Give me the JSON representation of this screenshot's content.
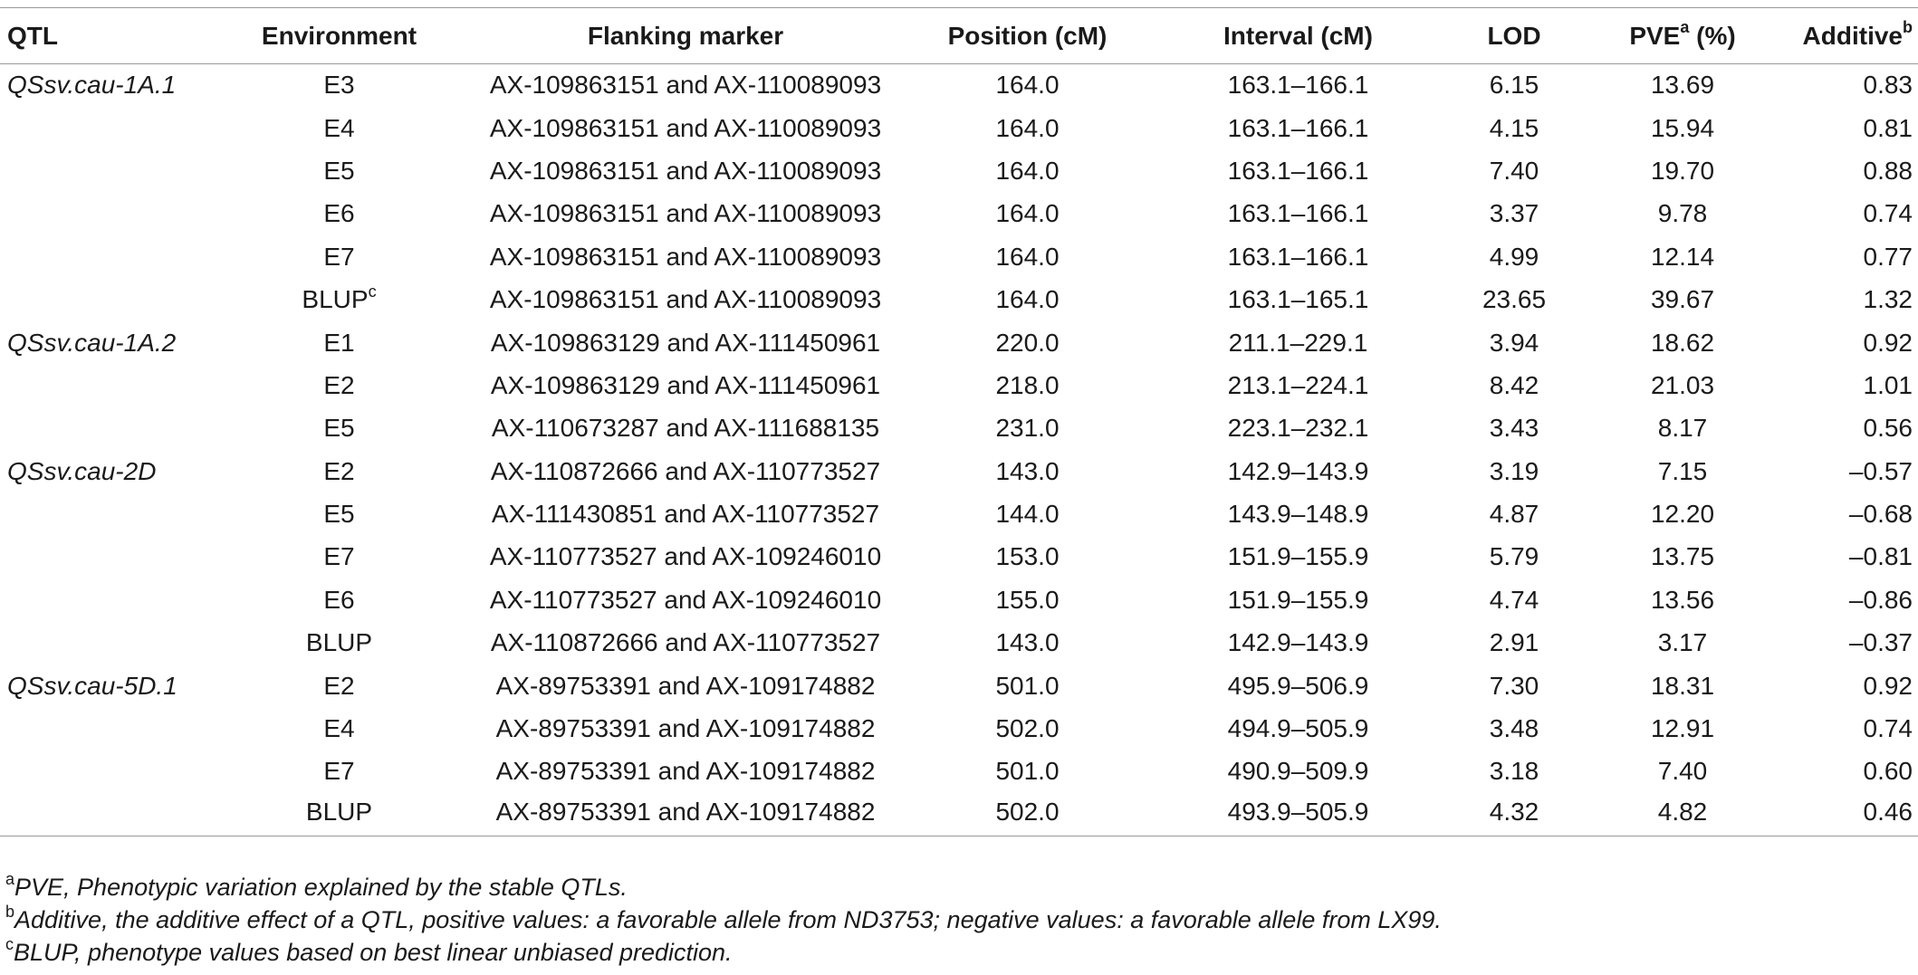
{
  "headers": {
    "qtl": "QTL",
    "environment": "Environment",
    "marker": "Flanking marker",
    "position": "Position (cM)",
    "interval": "Interval (cM)",
    "lod": "LOD",
    "pve": "PVE",
    "pve_sup": "a",
    "pve_unit": " (%)",
    "additive": "Additive",
    "additive_sup": "b"
  },
  "rows": [
    {
      "qtl": "QSsv.cau-1A.1",
      "env": "E3",
      "env_sup": "",
      "marker": "AX-109863151 and AX-110089093",
      "pos": "164.0",
      "interval": "163.1–166.1",
      "lod": "6.15",
      "pve": "13.69",
      "add": "0.83"
    },
    {
      "qtl": "",
      "env": "E4",
      "env_sup": "",
      "marker": "AX-109863151 and AX-110089093",
      "pos": "164.0",
      "interval": "163.1–166.1",
      "lod": "4.15",
      "pve": "15.94",
      "add": "0.81"
    },
    {
      "qtl": "",
      "env": "E5",
      "env_sup": "",
      "marker": "AX-109863151 and AX-110089093",
      "pos": "164.0",
      "interval": "163.1–166.1",
      "lod": "7.40",
      "pve": "19.70",
      "add": "0.88"
    },
    {
      "qtl": "",
      "env": "E6",
      "env_sup": "",
      "marker": "AX-109863151 and AX-110089093",
      "pos": "164.0",
      "interval": "163.1–166.1",
      "lod": "3.37",
      "pve": "9.78",
      "add": "0.74"
    },
    {
      "qtl": "",
      "env": "E7",
      "env_sup": "",
      "marker": "AX-109863151 and AX-110089093",
      "pos": "164.0",
      "interval": "163.1–166.1",
      "lod": "4.99",
      "pve": "12.14",
      "add": "0.77"
    },
    {
      "qtl": "",
      "env": "BLUP",
      "env_sup": "c",
      "marker": "AX-109863151 and AX-110089093",
      "pos": "164.0",
      "interval": "163.1–165.1",
      "lod": "23.65",
      "pve": "39.67",
      "add": "1.32"
    },
    {
      "qtl": "QSsv.cau-1A.2",
      "env": "E1",
      "env_sup": "",
      "marker": "AX-109863129 and AX-111450961",
      "pos": "220.0",
      "interval": "211.1–229.1",
      "lod": "3.94",
      "pve": "18.62",
      "add": "0.92"
    },
    {
      "qtl": "",
      "env": "E2",
      "env_sup": "",
      "marker": "AX-109863129 and AX-111450961",
      "pos": "218.0",
      "interval": "213.1–224.1",
      "lod": "8.42",
      "pve": "21.03",
      "add": "1.01"
    },
    {
      "qtl": "",
      "env": "E5",
      "env_sup": "",
      "marker": "AX-110673287 and AX-111688135",
      "pos": "231.0",
      "interval": "223.1–232.1",
      "lod": "3.43",
      "pve": "8.17",
      "add": "0.56"
    },
    {
      "qtl": "QSsv.cau-2D",
      "env": "E2",
      "env_sup": "",
      "marker": "AX-110872666 and AX-110773527",
      "pos": "143.0",
      "interval": "142.9–143.9",
      "lod": "3.19",
      "pve": "7.15",
      "add": "–0.57"
    },
    {
      "qtl": "",
      "env": "E5",
      "env_sup": "",
      "marker": "AX-111430851 and AX-110773527",
      "pos": "144.0",
      "interval": "143.9–148.9",
      "lod": "4.87",
      "pve": "12.20",
      "add": "–0.68"
    },
    {
      "qtl": "",
      "env": "E7",
      "env_sup": "",
      "marker": "AX-110773527 and AX-109246010",
      "pos": "153.0",
      "interval": "151.9–155.9",
      "lod": "5.79",
      "pve": "13.75",
      "add": "–0.81"
    },
    {
      "qtl": "",
      "env": "E6",
      "env_sup": "",
      "marker": "AX-110773527 and AX-109246010",
      "pos": "155.0",
      "interval": "151.9–155.9",
      "lod": "4.74",
      "pve": "13.56",
      "add": "–0.86"
    },
    {
      "qtl": "",
      "env": "BLUP",
      "env_sup": "",
      "marker": "AX-110872666 and AX-110773527",
      "pos": "143.0",
      "interval": "142.9–143.9",
      "lod": "2.91",
      "pve": "3.17",
      "add": "–0.37"
    },
    {
      "qtl": "QSsv.cau-5D.1",
      "env": "E2",
      "env_sup": "",
      "marker": "AX-89753391 and AX-109174882",
      "pos": "501.0",
      "interval": "495.9–506.9",
      "lod": "7.30",
      "pve": "18.31",
      "add": "0.92"
    },
    {
      "qtl": "",
      "env": "E4",
      "env_sup": "",
      "marker": "AX-89753391 and AX-109174882",
      "pos": "502.0",
      "interval": "494.9–505.9",
      "lod": "3.48",
      "pve": "12.91",
      "add": "0.74"
    },
    {
      "qtl": "",
      "env": "E7",
      "env_sup": "",
      "marker": "AX-89753391 and AX-109174882",
      "pos": "501.0",
      "interval": "490.9–509.9",
      "lod": "3.18",
      "pve": "7.40",
      "add": "0.60"
    },
    {
      "qtl": "",
      "env": "BLUP",
      "env_sup": "",
      "marker": "AX-89753391 and AX-109174882",
      "pos": "502.0",
      "interval": "493.9–505.9",
      "lod": "4.32",
      "pve": "4.82",
      "add": "0.46"
    }
  ],
  "footnotes": [
    {
      "mark": "a",
      "text": "PVE, Phenotypic variation explained by the stable QTLs."
    },
    {
      "mark": "b",
      "text": "Additive, the additive effect of a QTL, positive values: a favorable allele from ND3753; negative values: a favorable allele from LX99."
    },
    {
      "mark": "c",
      "text": "BLUP, phenotype values based on best linear unbiased prediction."
    }
  ]
}
